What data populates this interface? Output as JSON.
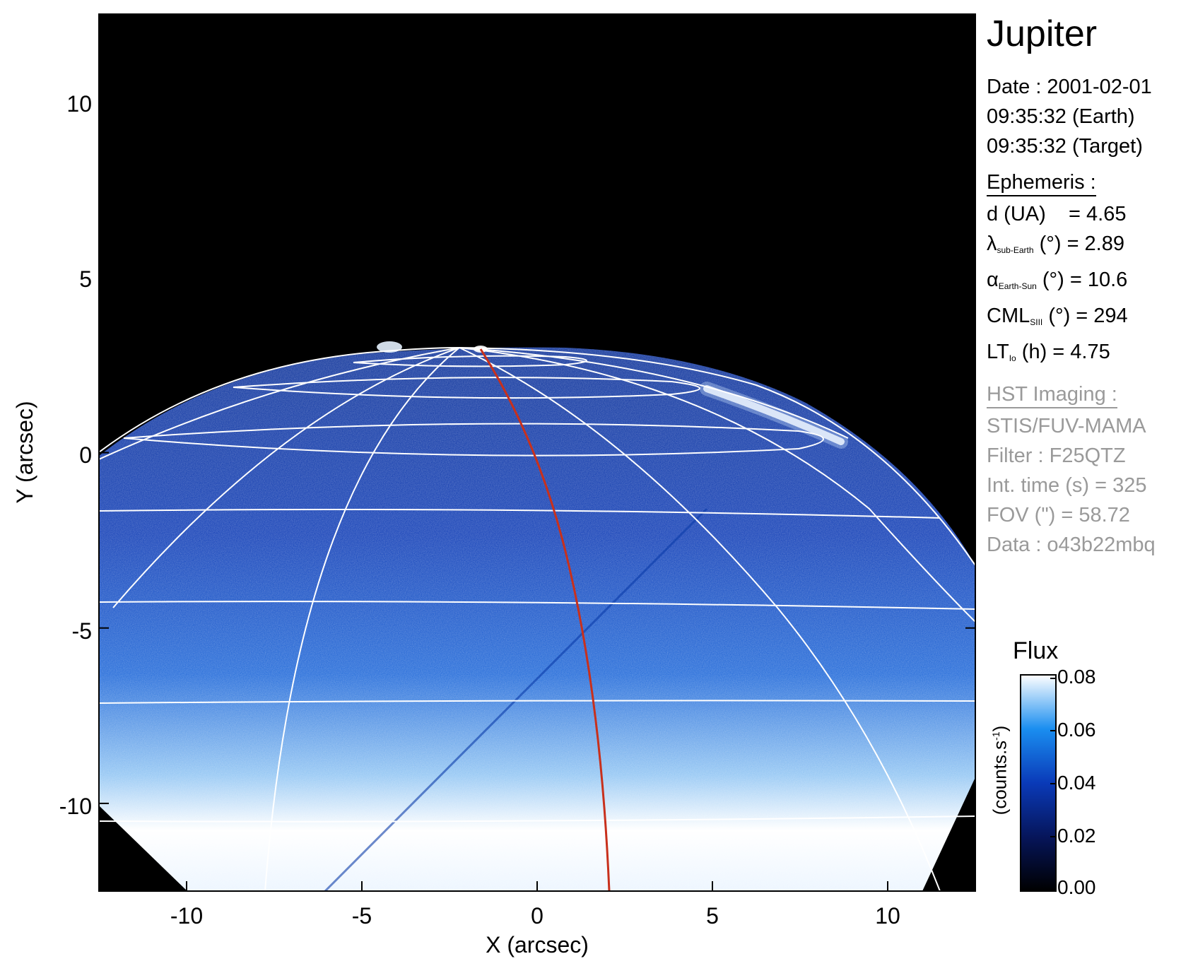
{
  "planet": "Jupiter",
  "date_line": "Date : 2001-02-01",
  "time_earth": "09:35:32 (Earth)",
  "time_target": "09:35:32 (Target)",
  "ephemeris": {
    "heading": "Ephemeris :",
    "d_label": "d (UA)",
    "d_value": "= 4.65",
    "lambda_symbol": "λ",
    "lambda_sub": "sub-Earth",
    "lambda_value": "(°) = 2.89",
    "alpha_symbol": "α",
    "alpha_sub": "Earth-Sun",
    "alpha_value": "(°) = 10.6",
    "cml_label": "CML",
    "cml_sub": "SIII",
    "cml_value": "(°) = 294",
    "lt_label": "LT",
    "lt_sub": "Io",
    "lt_value": "(h) = 4.75"
  },
  "imaging": {
    "heading": "HST Imaging :",
    "instrument": "STIS/FUV-MAMA",
    "filter": "Filter : F25QTZ",
    "int_time": "Int. time (s) = 325",
    "fov": "FOV (\") = 58.72",
    "data": "Data : o43b22mbq"
  },
  "colorbar": {
    "title": "Flux",
    "unit": "(counts.s",
    "unit_sup": "-1",
    "unit_close": ")",
    "ticks": [
      "0.08",
      "0.06",
      "0.04",
      "0.02",
      "0.00"
    ],
    "tick_values": [
      0.08,
      0.06,
      0.04,
      0.02,
      0.0
    ],
    "range": [
      0.0,
      0.08
    ]
  },
  "axes": {
    "xlabel": "X (arcsec)",
    "ylabel": "Y (arcsec)",
    "xticks": [
      "-10",
      "-5",
      "0",
      "5",
      "10"
    ],
    "yticks": [
      "10",
      "5",
      "0",
      "-5",
      "-10"
    ],
    "xlim": [
      -12.5,
      12.5
    ],
    "ylim": [
      -12.5,
      12.5
    ]
  },
  "colors": {
    "background": "#000000",
    "grid": "#ffffff",
    "meridian": "#c8301c",
    "disk_dark": "#0a2a8a",
    "disk_mid": "#1f63d6",
    "disk_bright": "#ffffff",
    "imaging_text": "#9a9a9a"
  }
}
